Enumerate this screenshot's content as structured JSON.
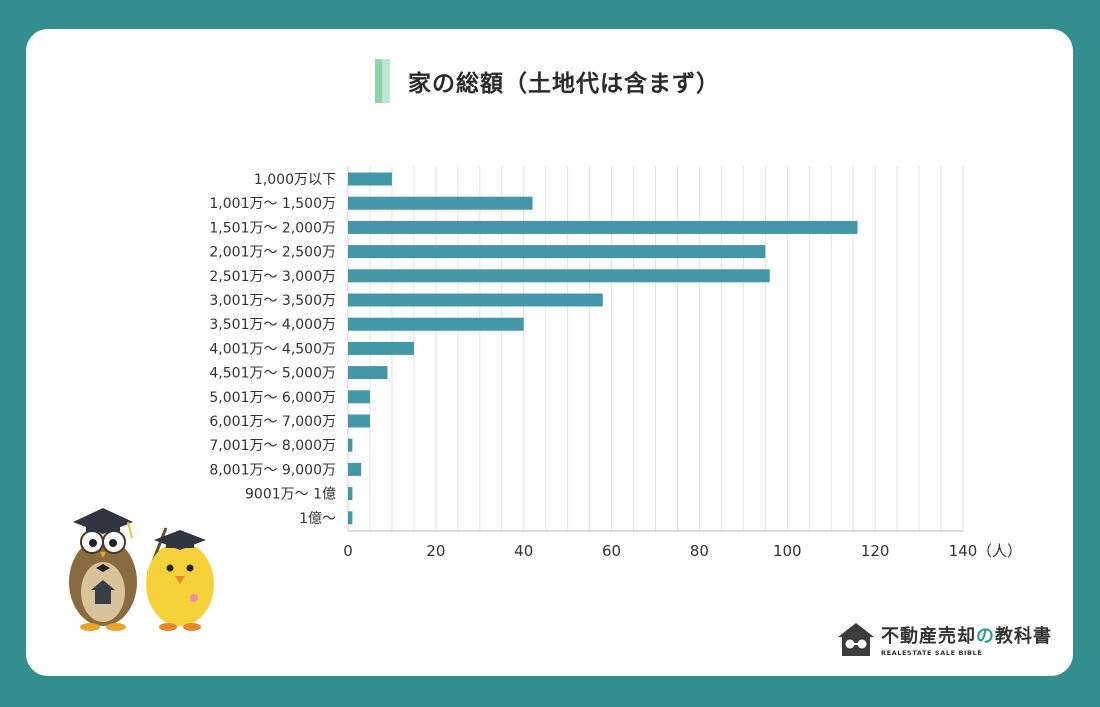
{
  "chart_data": {
    "type": "bar",
    "orientation": "horizontal",
    "title": "家の総額（土地代は含まず）",
    "categories": [
      "1,000万以下",
      "1,001万〜 1,500万",
      "1,501万〜 2,000万",
      "2,001万〜 2,500万",
      "2,501万〜 3,000万",
      "3,001万〜 3,500万",
      "3,501万〜 4,000万",
      "4,001万〜 4,500万",
      "4,501万〜 5,000万",
      "5,001万〜 6,000万",
      "6,001万〜 7,000万",
      "7,001万〜 8,000万",
      "8,001万〜 9,000万",
      "9001万〜 1億",
      "1億〜"
    ],
    "values": [
      10,
      42,
      116,
      95,
      96,
      58,
      40,
      15,
      9,
      5,
      5,
      1,
      3,
      1,
      1
    ],
    "xlim": [
      0,
      140
    ],
    "xticks": [
      0,
      20,
      40,
      60,
      80,
      100,
      120,
      140
    ],
    "xunit": "（人）",
    "grid": true,
    "bar_color": "#4397a8"
  },
  "logo": {
    "main_prefix": "不動産売却",
    "main_accent": "の",
    "main_suffix": "教科書",
    "sub": "REALESTATE SALE BIBLE"
  }
}
